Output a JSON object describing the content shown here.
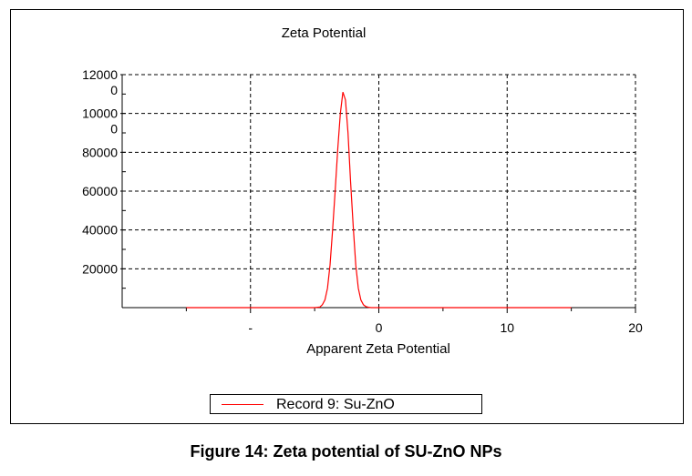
{
  "chart_data": {
    "type": "line",
    "title": "Zeta Potential",
    "xlabel": "Apparent Zeta Potential",
    "ylabel": "",
    "xlim": [
      -20,
      20
    ],
    "ylim": [
      0,
      120000
    ],
    "x_ticks": [
      {
        "value": -10,
        "label": "-"
      },
      {
        "value": 0,
        "label": "0"
      },
      {
        "value": 10,
        "label": "10"
      },
      {
        "value": 20,
        "label": "20"
      }
    ],
    "y_ticks": [
      {
        "value": 20000,
        "label": "20000"
      },
      {
        "value": 40000,
        "label": "40000"
      },
      {
        "value": 60000,
        "label": "60000"
      },
      {
        "value": 80000,
        "label": "80000"
      },
      {
        "value": 100000,
        "label": "10000\n0"
      },
      {
        "value": 120000,
        "label": "12000\n0"
      }
    ],
    "grid": true,
    "legend_position": "bottom-center",
    "series": [
      {
        "name": "Record 9: Su-ZnO",
        "color": "#ff0000",
        "x": [
          -15,
          -5,
          -4.6,
          -4.4,
          -4.2,
          -4.0,
          -3.8,
          -3.6,
          -3.4,
          -3.2,
          -3.0,
          -2.8,
          -2.6,
          -2.4,
          -2.2,
          -2.0,
          -1.8,
          -1.6,
          -1.4,
          -1.2,
          -1.0,
          -0.8,
          -0.6,
          -0.2,
          0,
          5,
          10,
          15
        ],
        "y": [
          0,
          0,
          300,
          1500,
          4000,
          10000,
          22000,
          40000,
          60000,
          82000,
          100000,
          111000,
          107000,
          90000,
          65000,
          42000,
          22000,
          10000,
          4000,
          1500,
          500,
          200,
          0,
          0,
          0,
          0,
          0,
          0
        ]
      }
    ]
  },
  "legend": {
    "label": "Record 9: Su-ZnO"
  },
  "caption": "Figure 14: Zeta potential of SU-ZnO NPs",
  "colors": {
    "series": "#ff0000",
    "grid": "#000000",
    "frame": "#000000"
  }
}
